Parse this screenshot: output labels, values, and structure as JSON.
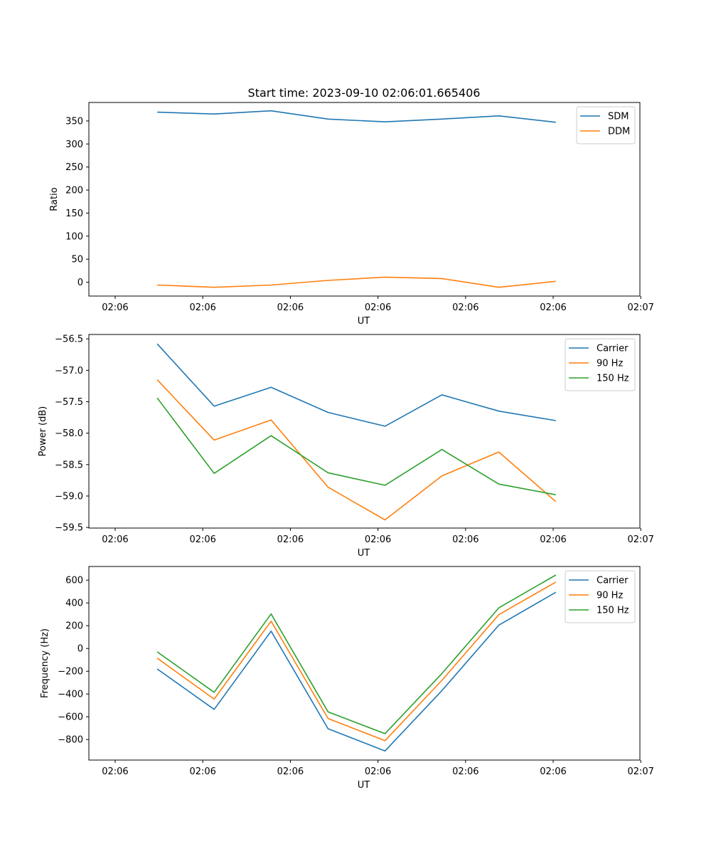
{
  "chart_data": [
    {
      "type": "line",
      "title": "Start time: 2023-09-10 02:06:01.665406",
      "xlabel": "UT",
      "ylabel": "Ratio",
      "x_ticks": [
        "02:06",
        "02:06",
        "02:06",
        "02:06",
        "02:06",
        "02:06",
        "02:07"
      ],
      "x": [
        0.48,
        1.13,
        1.78,
        2.43,
        3.08,
        3.73,
        4.38,
        5.03
      ],
      "xlim": [
        -0.3,
        5.99
      ],
      "ylim": [
        -30,
        390
      ],
      "y_ticks": [
        0,
        50,
        100,
        150,
        200,
        250,
        300,
        350
      ],
      "legend_position": "top-right",
      "series": [
        {
          "name": "SDM",
          "color": "#1f77b4",
          "values": [
            369,
            365,
            372,
            354,
            348,
            354,
            361,
            347
          ]
        },
        {
          "name": "DDM",
          "color": "#ff7f0e",
          "values": [
            -6,
            -11,
            -6,
            4,
            11,
            8,
            -11,
            2
          ]
        }
      ]
    },
    {
      "type": "line",
      "title": "",
      "xlabel": "UT",
      "ylabel": "Power (dB)",
      "x_ticks": [
        "02:06",
        "02:06",
        "02:06",
        "02:06",
        "02:06",
        "02:06",
        "02:07"
      ],
      "x": [
        0.48,
        1.13,
        1.78,
        2.43,
        3.08,
        3.73,
        4.38,
        5.03
      ],
      "xlim": [
        -0.3,
        5.99
      ],
      "ylim": [
        -59.51,
        -56.43
      ],
      "y_ticks": [
        -59.5,
        -59.0,
        -58.5,
        -58.0,
        -57.5,
        -57.0,
        -56.5
      ],
      "y_tick_labels": [
        "−59.5",
        "−59.0",
        "−58.5",
        "−58.0",
        "−57.5",
        "−57.0",
        "−56.5"
      ],
      "legend_position": "top-right",
      "series": [
        {
          "name": "Carrier",
          "color": "#1f77b4",
          "values": [
            -56.58,
            -57.57,
            -57.27,
            -57.67,
            -57.89,
            -57.39,
            -57.65,
            -57.8
          ]
        },
        {
          "name": "90 Hz",
          "color": "#ff7f0e",
          "values": [
            -57.15,
            -58.11,
            -57.79,
            -58.86,
            -59.38,
            -58.68,
            -58.3,
            -59.09
          ]
        },
        {
          "name": "150 Hz",
          "color": "#2ca02c",
          "values": [
            -57.44,
            -58.64,
            -58.04,
            -58.63,
            -58.83,
            -58.26,
            -58.81,
            -58.98
          ]
        }
      ]
    },
    {
      "type": "line",
      "title": "",
      "xlabel": "UT",
      "ylabel": "Frequency (Hz)",
      "x_ticks": [
        "02:06",
        "02:06",
        "02:06",
        "02:06",
        "02:06",
        "02:06",
        "02:07"
      ],
      "x": [
        0.48,
        1.13,
        1.78,
        2.43,
        3.08,
        3.73,
        4.38,
        5.03
      ],
      "xlim": [
        -0.3,
        5.99
      ],
      "ylim": [
        -980,
        720
      ],
      "y_ticks": [
        -800,
        -600,
        -400,
        -200,
        0,
        200,
        400,
        600
      ],
      "y_tick_labels": [
        "−800",
        "−600",
        "−400",
        "−200",
        "0",
        "200",
        "400",
        "600"
      ],
      "legend_position": "top-right",
      "series": [
        {
          "name": "Carrier",
          "color": "#1f77b4",
          "values": [
            -180,
            -535,
            152,
            -705,
            -900,
            -370,
            205,
            493
          ]
        },
        {
          "name": "90 Hz",
          "color": "#ff7f0e",
          "values": [
            -85,
            -445,
            240,
            -615,
            -810,
            -280,
            297,
            583
          ]
        },
        {
          "name": "150 Hz",
          "color": "#2ca02c",
          "values": [
            -30,
            -385,
            303,
            -557,
            -748,
            -220,
            357,
            645
          ]
        }
      ]
    }
  ]
}
